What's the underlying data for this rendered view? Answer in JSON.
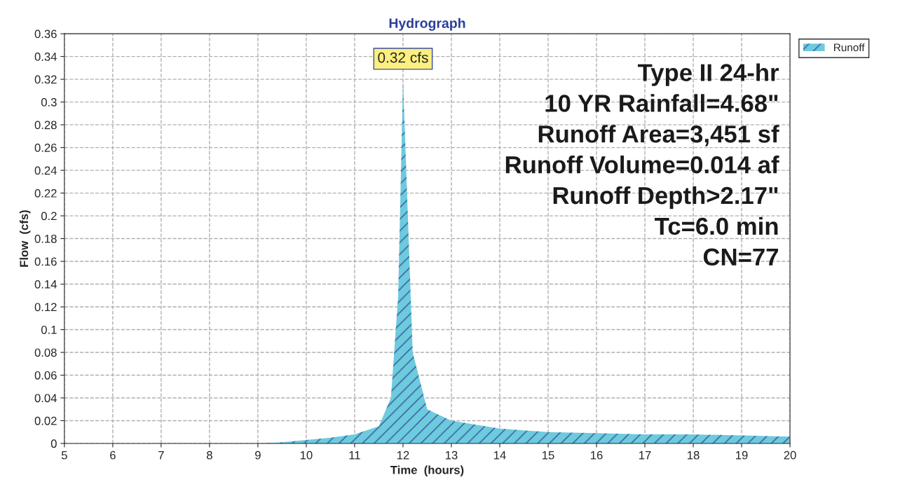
{
  "chart_data": {
    "type": "area",
    "title": "Hydrograph",
    "xlabel": "Time  (hours)",
    "ylabel": "Flow  (cfs)",
    "x": [
      5,
      9,
      9.5,
      10,
      10.5,
      11,
      11.5,
      11.75,
      11.9,
      12.0,
      12.1,
      12.2,
      12.5,
      13,
      14,
      15,
      16,
      17,
      18,
      19,
      20
    ],
    "series": [
      {
        "name": "Runoff",
        "color": "#6ccbdc",
        "values": [
          0,
          0,
          0.001,
          0.003,
          0.005,
          0.008,
          0.015,
          0.04,
          0.13,
          0.32,
          0.2,
          0.08,
          0.03,
          0.02,
          0.013,
          0.01,
          0.009,
          0.008,
          0.008,
          0.007,
          0.006
        ]
      }
    ],
    "xlim": [
      5,
      20
    ],
    "xticks": [
      5,
      6,
      7,
      8,
      9,
      10,
      11,
      12,
      13,
      14,
      15,
      16,
      17,
      18,
      19,
      20
    ],
    "ylim": [
      0,
      0.36
    ],
    "yticks": [
      0,
      0.02,
      0.04,
      0.06,
      0.08,
      0.1,
      0.12,
      0.14,
      0.16,
      0.18,
      0.2,
      0.22,
      0.24,
      0.26,
      0.28,
      0.3,
      0.32,
      0.34,
      0.36
    ],
    "grid": true,
    "legend": "top right",
    "annotations": [
      {
        "text": "0.32 cfs",
        "x": 12.0,
        "y": 0.32
      },
      "Type II 24-hr",
      "10 YR Rainfall=4.68\"",
      "Runoff Area=3,451 sf",
      "Runoff Volume=0.014 af",
      "Runoff Depth>2.17\"",
      "Tc=6.0 min",
      "CN=77"
    ]
  }
}
